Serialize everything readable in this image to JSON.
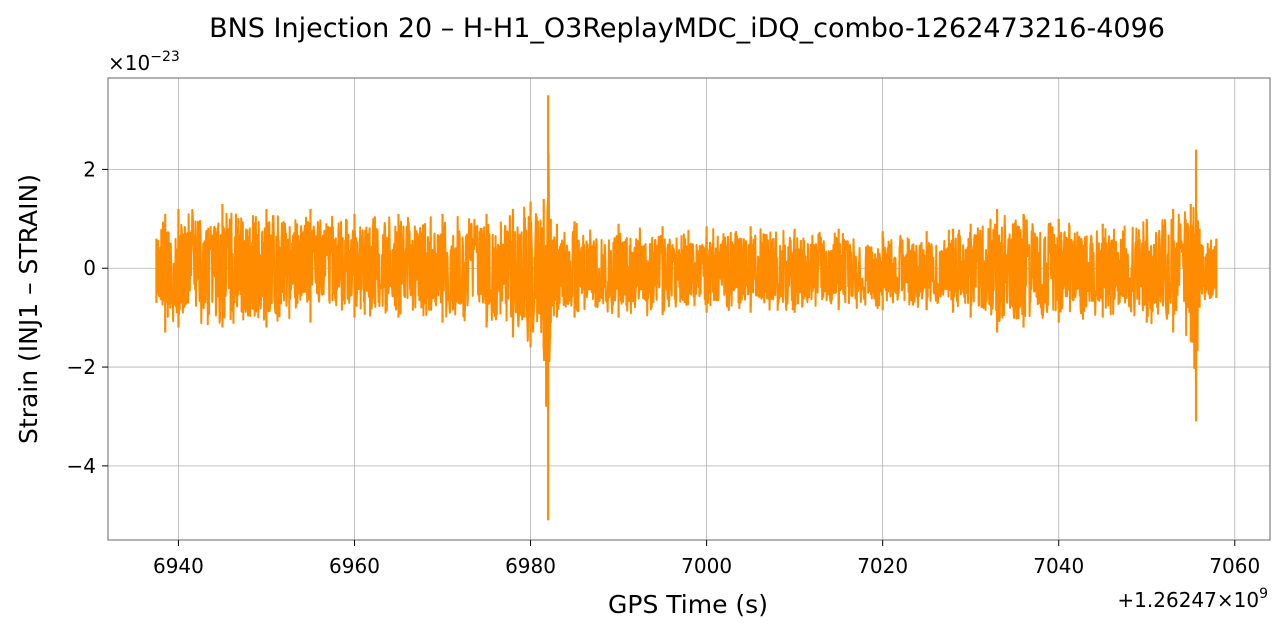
{
  "chart_data": {
    "type": "line",
    "title": "BNS Injection 20 – H-H1_O3ReplayMDC_iDQ_combo-1262473216-4096",
    "xlabel": "GPS Time (s)",
    "ylabel": "Strain (INJ1 – STRAIN)",
    "x_offset_label": "+1.26247×10",
    "x_offset_exp": "9",
    "y_scale_label": "×10",
    "y_scale_exp": "−23",
    "xlim": [
      6932,
      7064
    ],
    "ylim": [
      -5.5,
      3.85
    ],
    "xticks": [
      6940,
      6960,
      6980,
      7000,
      7020,
      7040,
      7060
    ],
    "xtick_labels": [
      "6940",
      "6960",
      "6980",
      "7000",
      "7020",
      "7040",
      "7060"
    ],
    "yticks": [
      -4,
      -2,
      0,
      2
    ],
    "ytick_labels": [
      "−4",
      "−2",
      "0",
      "2"
    ],
    "grid": true,
    "series": [
      {
        "color": "#ff8c00",
        "x_range": [
          6937.5,
          7057.9
        ],
        "envelope": {
          "x": [
            6937.5,
            6938.5,
            6940,
            6945,
            6950,
            6955,
            6960,
            6965,
            6970,
            6975,
            6978,
            6980,
            6981.5,
            6982,
            6982.3,
            6983,
            6985,
            6990,
            6995,
            7000,
            7005,
            7010,
            7015,
            7020,
            7025,
            7028,
            7030,
            7033,
            7036,
            7040,
            7045,
            7050,
            7053,
            7055,
            7055.6,
            7056,
            7057.9
          ],
          "upper": [
            0.6,
            1.1,
            1.2,
            1.3,
            1.2,
            1.2,
            1.1,
            1.1,
            1.1,
            1.1,
            1.2,
            1.35,
            1.4,
            3.5,
            1.0,
            0.9,
            0.95,
            0.9,
            0.85,
            0.85,
            0.85,
            0.8,
            0.8,
            0.75,
            0.75,
            0.8,
            0.9,
            1.2,
            1.1,
            1.0,
            0.9,
            1.0,
            1.2,
            1.3,
            2.4,
            0.8,
            0.6
          ],
          "lower": [
            -0.7,
            -1.3,
            -1.2,
            -1.2,
            -1.2,
            -1.1,
            -1.0,
            -1.0,
            -1.1,
            -1.2,
            -1.4,
            -1.6,
            -1.65,
            -5.1,
            -1.1,
            -1.0,
            -1.0,
            -1.0,
            -0.95,
            -0.9,
            -0.9,
            -0.9,
            -0.85,
            -0.85,
            -0.85,
            -0.9,
            -1.0,
            -1.3,
            -1.2,
            -1.1,
            -1.0,
            -1.1,
            -1.3,
            -1.5,
            -3.1,
            -0.8,
            -0.6
          ]
        }
      }
    ]
  }
}
